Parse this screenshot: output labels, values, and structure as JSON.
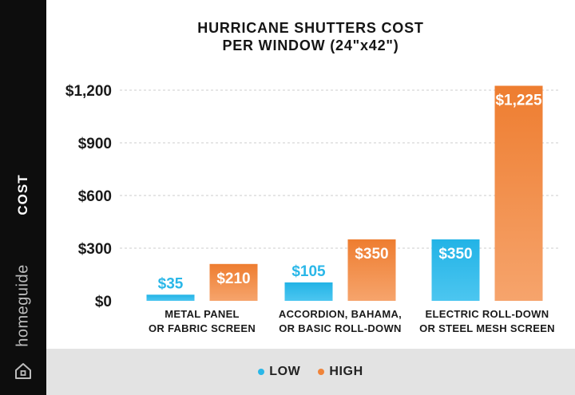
{
  "brand": "homeguide",
  "colors": {
    "low": "#2ab7e8",
    "high": "#f0843a",
    "sidebar": "#0d0d0d",
    "legend_bg": "#e3e3e3"
  },
  "icons": {
    "brand_icon": "house-icon"
  },
  "chart_data": {
    "type": "bar",
    "title_lines": [
      "HURRICANE SHUTTERS COST",
      "PER WINDOW (24\"x42\")"
    ],
    "ylabel": "COST",
    "xlabel": "",
    "ylim": [
      0,
      1200
    ],
    "yticks": [
      0,
      300,
      600,
      900,
      1200
    ],
    "ytick_labels": [
      "$0",
      "$300",
      "$600",
      "$900",
      "$1,200"
    ],
    "grid": true,
    "legend_position": "bottom",
    "categories": [
      [
        "METAL PANEL",
        "OR FABRIC SCREEN"
      ],
      [
        "ACCORDION, BAHAMA,",
        "OR BASIC ROLL-DOWN"
      ],
      [
        "ELECTRIC ROLL-DOWN",
        "OR STEEL MESH SCREEN"
      ]
    ],
    "series": [
      {
        "name": "LOW",
        "values": [
          35,
          105,
          350
        ],
        "labels": [
          "$35",
          "$105",
          "$350"
        ]
      },
      {
        "name": "HIGH",
        "values": [
          210,
          350,
          1225
        ],
        "labels": [
          "$210",
          "$350",
          "$1,225"
        ]
      }
    ]
  }
}
